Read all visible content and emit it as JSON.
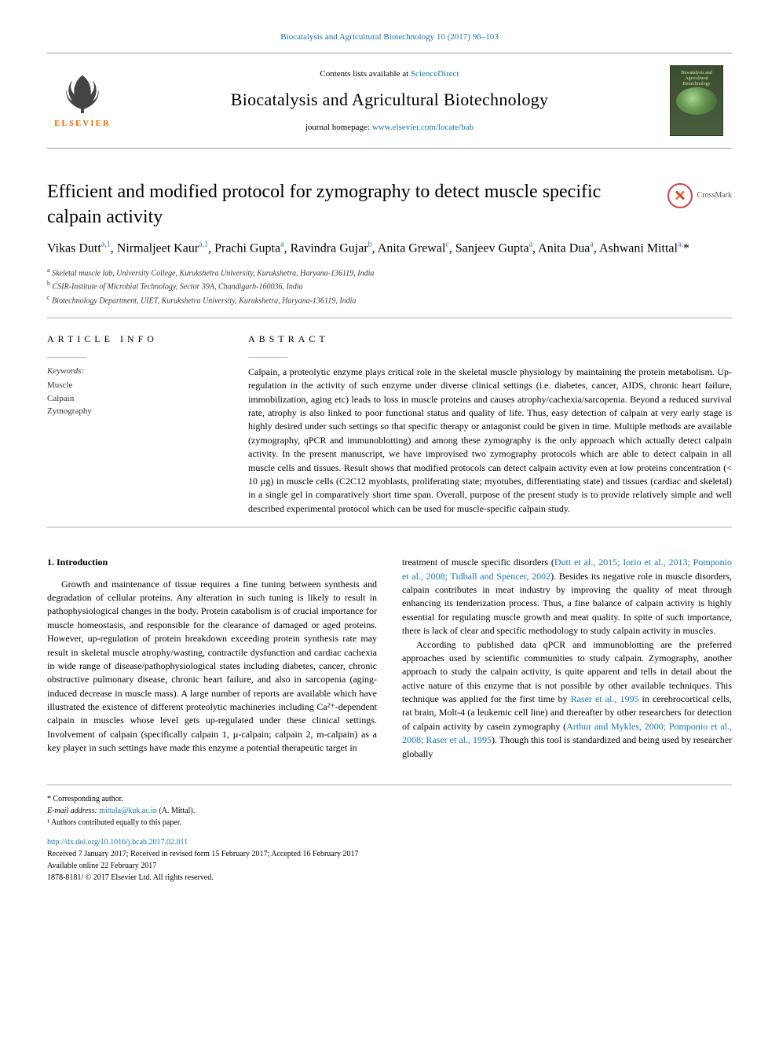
{
  "header": {
    "citation": "Biocatalysis and Agricultural Biotechnology 10 (2017) 96–103",
    "contents_prefix": "Contents lists available at ",
    "contents_link": "ScienceDirect",
    "journal_name": "Biocatalysis and Agricultural Biotechnology",
    "homepage_prefix": "journal homepage: ",
    "homepage_link": "www.elsevier.com/locate/bab",
    "publisher_logo_text": "ELSEVIER",
    "cover_text": "Biocatalysis and Agricultural Biotechnology"
  },
  "crossmark": {
    "label": "CrossMark"
  },
  "article": {
    "title": "Efficient and modified protocol for zymography to detect muscle specific calpain activity",
    "authors_html": "Vikas Dutt<sup>a,1</sup>, Nirmaljeet Kaur<sup>a,1</sup>, Prachi Gupta<sup>a</sup>, Ravindra Gujar<sup>b</sup>, Anita Grewal<sup>c</sup>, Sanjeev Gupta<sup>a</sup>, Anita Dua<sup>a</sup>, Ashwani Mittal<sup>a,</sup>*",
    "affiliations": [
      {
        "sup": "a",
        "text": "Skeletal muscle lab, University College, Kurukshetra University, Kurukshetra, Haryana-136119, India"
      },
      {
        "sup": "b",
        "text": "CSIR-Institute of Microbial Technology, Sector 39A, Chandigarh-160036, India"
      },
      {
        "sup": "c",
        "text": "Biotechnology Department, UIET, Kurukshetra University, Kurukshetra, Haryana-136119, India"
      }
    ]
  },
  "article_info": {
    "label": "ARTICLE INFO",
    "keywords_label": "Keywords:",
    "keywords": [
      "Muscle",
      "Calpain",
      "Zymography"
    ]
  },
  "abstract": {
    "label": "ABSTRACT",
    "text": "Calpain, a proteolytic enzyme plays critical role in the skeletal muscle physiology by maintaining the protein metabolism. Up-regulation in the activity of such enzyme under diverse clinical settings (i.e. diabetes, cancer, AIDS, chronic heart failure, immobilization, aging etc) leads to loss in muscle proteins and causes atrophy/cachexia/sarcopenia. Beyond a reduced survival rate, atrophy is also linked to poor functional status and quality of life. Thus, easy detection of calpain at very early stage is highly desired under such settings so that specific therapy or antagonist could be given in time. Multiple methods are available (zymography, qPCR and immunoblotting) and among these zymography is the only approach which actually detect calpain activity. In the present manuscript, we have improvised two zymography protocols which are able to detect calpain in all muscle cells and tissues. Result shows that modified protocols can detect calpain activity even at low proteins concentration (< 10 µg) in muscle cells (C2C12 myoblasts, proliferating state; myotubes, differentiating state) and tissues (cardiac and skeletal) in a single gel in comparatively short time span. Overall, purpose of the present study is to provide relatively simple and well described experimental protocol which can be used for muscle-specific calpain study."
  },
  "intro": {
    "heading": "1. Introduction",
    "col1": "Growth and maintenance of tissue requires a fine tuning between synthesis and degradation of cellular proteins. Any alteration in such tuning is likely to result in pathophysiological changes in the body. Protein catabolism is of crucial importance for muscle homeostasis, and responsible for the clearance of damaged or aged proteins. However, up-regulation of protein breakdown exceeding protein synthesis rate may result in skeletal muscle atrophy/wasting, contractile dysfunction and cardiac cachexia in wide range of disease/pathophysiological states including diabetes, cancer, chronic obstructive pulmonary disease, chronic heart failure, and also in sarcopenia (aging-induced decrease in muscle mass). A large number of reports are available which have illustrated the existence of different proteolytic machineries including Ca²⁺-dependent calpain in muscles whose level gets up-regulated under these clinical settings. Involvement of calpain (specifically calpain 1, µ-calpain; calpain 2, m-calpain) as a key player in such settings have made this enzyme a potential therapeutic target in",
    "col2_pre": "treatment of muscle specific disorders (",
    "col2_ref1": "Dutt et al., 2015; Iorio et al., 2013; Pomponio et al., 2008; Tidball and Spencer, 2002",
    "col2_mid": "). Besides its negative role in muscle disorders, calpain contributes in meat industry by improving the quality of meat through enhancing its tenderization process. Thus, a fine balance of calpain activity is highly essential for regulating muscle growth and meat quality. In spite of such importance, there is lack of clear and specific methodology to study calpain activity in muscles.",
    "col2_p2_pre": "According to published data qPCR and immunoblotting are the preferred approaches used by scientific communities to study calpain. Zymography, another approach to study the calpain activity, is quite apparent and tells in detail about the active nature of this enzyme that is not possible by other available techniques. This technique was applied for the first time by ",
    "col2_ref2": "Raser et al., 1995",
    "col2_p2_mid": " in cerebrocortical cells, rat brain, Molt-4 (a leukemic cell line) and thereafter by other researchers for detection of calpain activity by casein zymography (",
    "col2_ref3": "Arthur and Mykles, 2000; Pomponio et al., 2008; Raser et al., 1995",
    "col2_p2_post": "). Though this tool is standardized and being used by researcher globally"
  },
  "footer": {
    "corresponding": "* Corresponding author.",
    "email_label": "E-mail address: ",
    "email": "mittala@kuk.ac.in",
    "email_suffix": " (A. Mittal).",
    "equal": "¹ Authors contributed equally to this paper.",
    "doi": "http://dx.doi.org/10.1016/j.bcab.2017.02.011",
    "received": "Received 7 January 2017; Received in revised form 15 February 2017; Accepted 16 February 2017",
    "available": "Available online 22 February 2017",
    "copyright": "1878-8181/ © 2017 Elsevier Ltd. All rights reserved."
  },
  "colors": {
    "link": "#1a74b0",
    "elsevier": "#ed6c00"
  }
}
